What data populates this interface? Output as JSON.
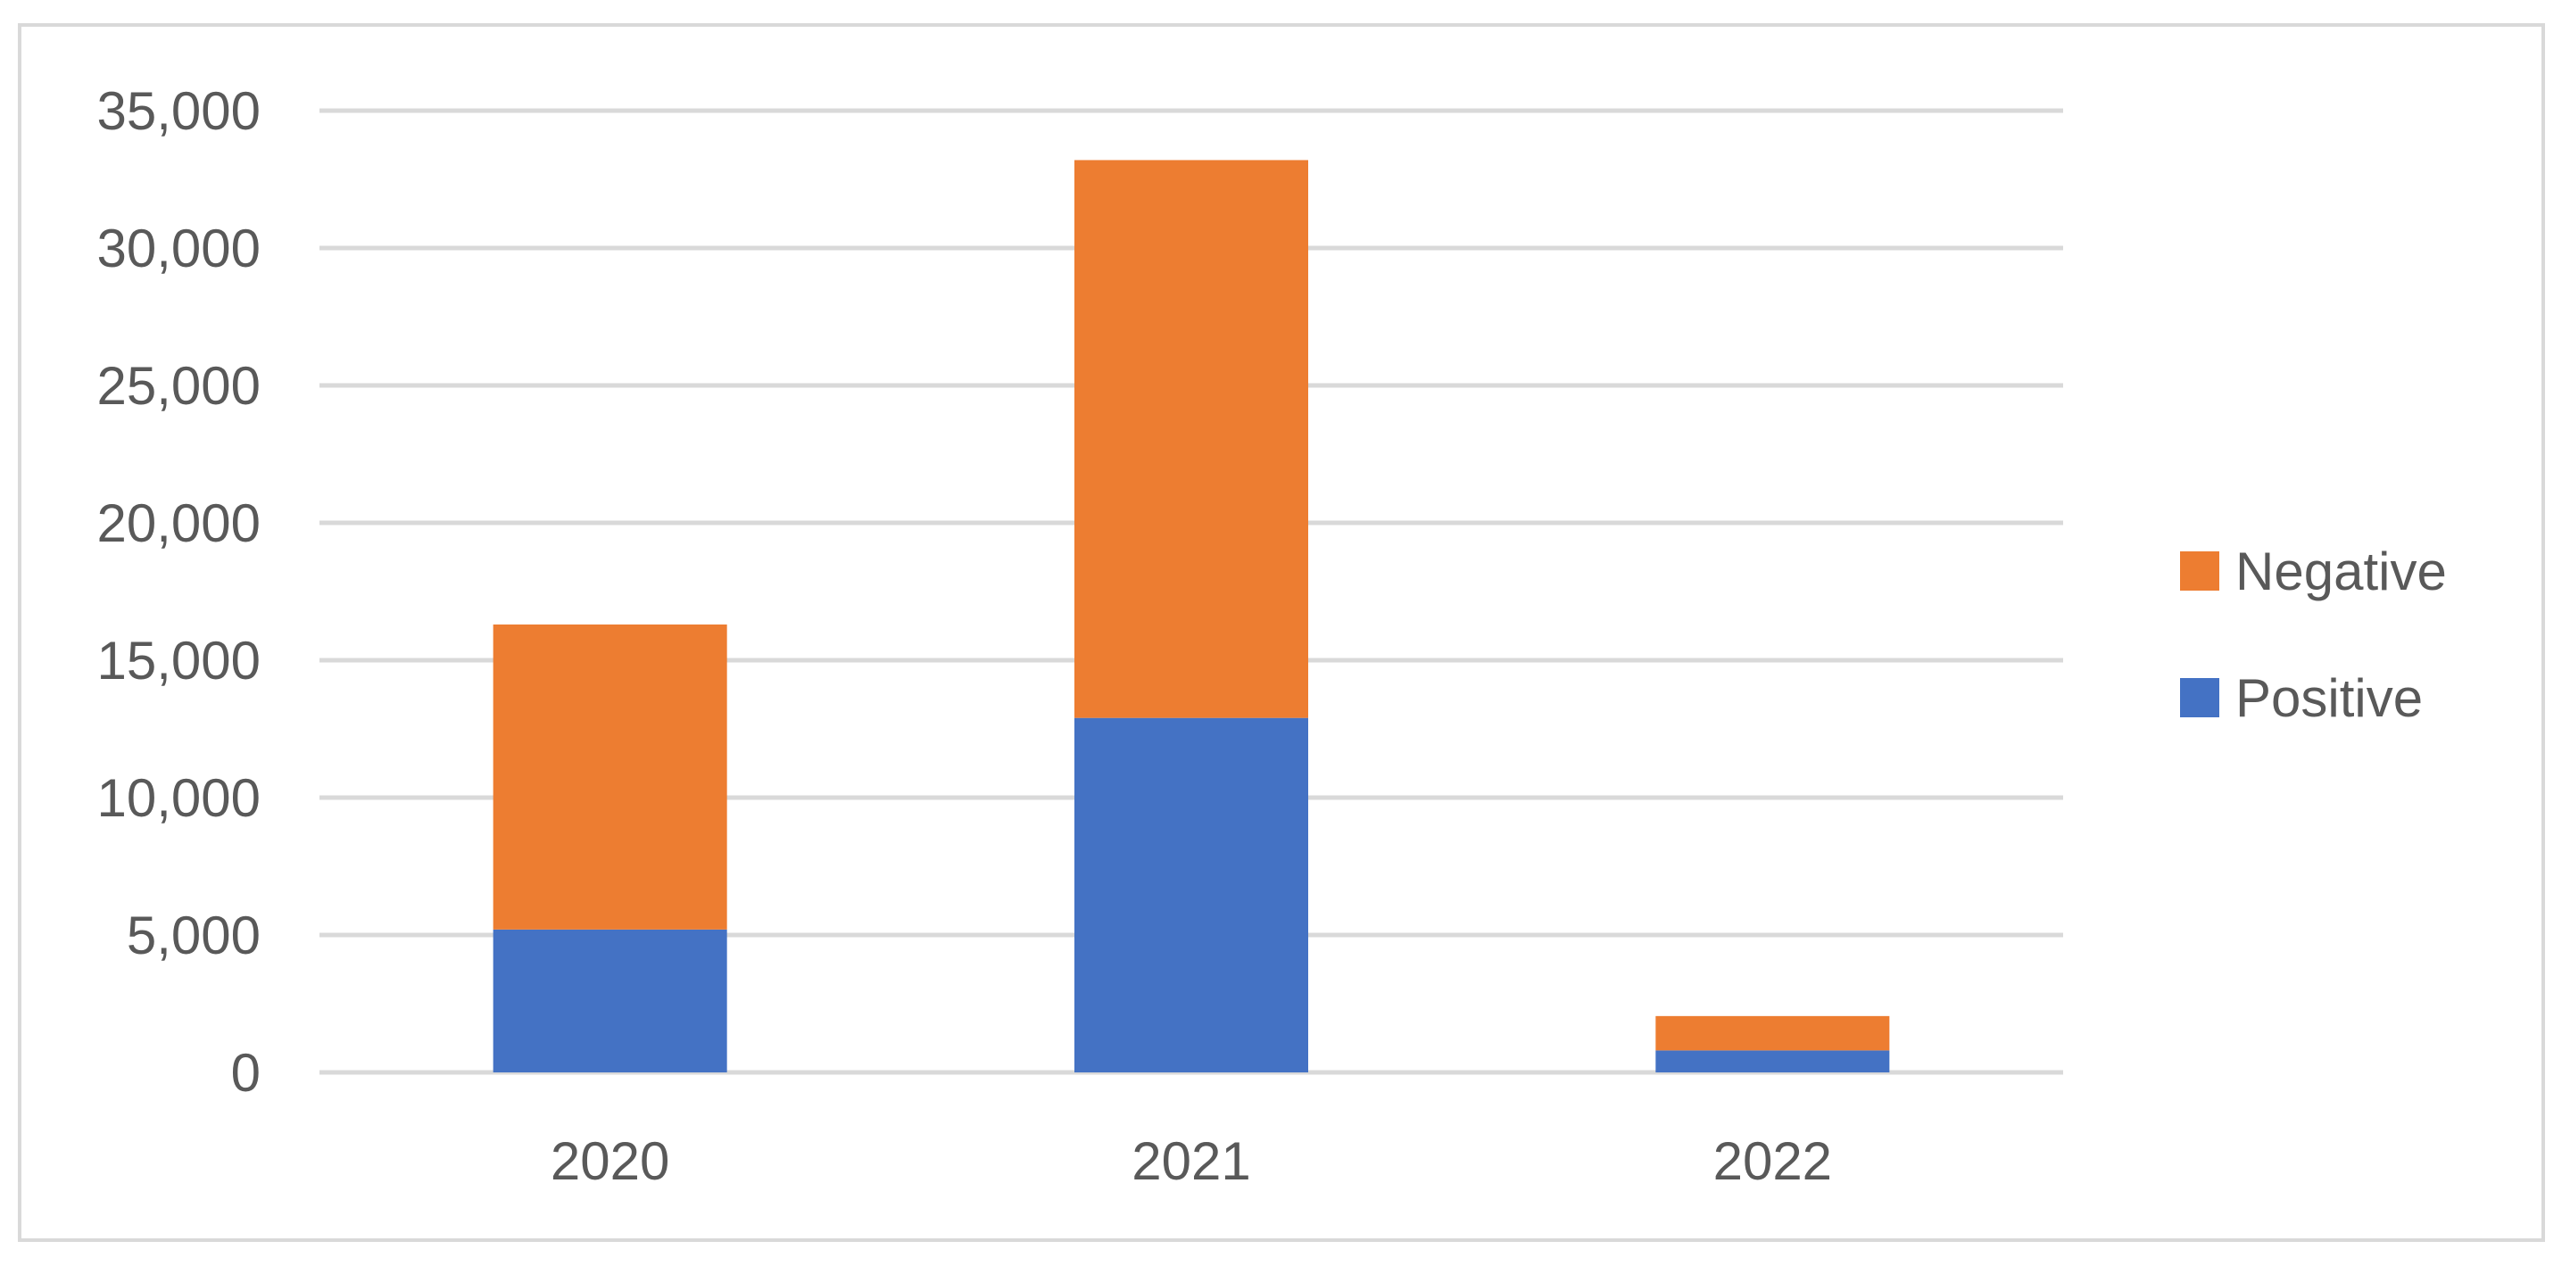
{
  "chart_data": {
    "type": "bar",
    "stacked": true,
    "categories": [
      "2020",
      "2021",
      "2022"
    ],
    "series": [
      {
        "name": "Positive",
        "values": [
          5200,
          12900,
          800
        ],
        "color": "#4472C4"
      },
      {
        "name": "Negative",
        "values": [
          11100,
          20300,
          1250
        ],
        "color": "#ED7D31"
      }
    ],
    "ylim": [
      0,
      35000
    ],
    "yticks": [
      0,
      5000,
      10000,
      15000,
      20000,
      25000,
      30000,
      35000
    ],
    "ytick_labels": [
      "0",
      "5,000",
      "10,000",
      "15,000",
      "20,000",
      "25,000",
      "30,000",
      "35,000"
    ],
    "grid": true,
    "gridline_color": "#d9d9d9",
    "legend": {
      "position": "right",
      "items": [
        {
          "label": "Negative",
          "color": "#ED7D31"
        },
        {
          "label": "Positive",
          "color": "#4472C4"
        }
      ]
    },
    "title": "",
    "xlabel": "",
    "ylabel": ""
  }
}
